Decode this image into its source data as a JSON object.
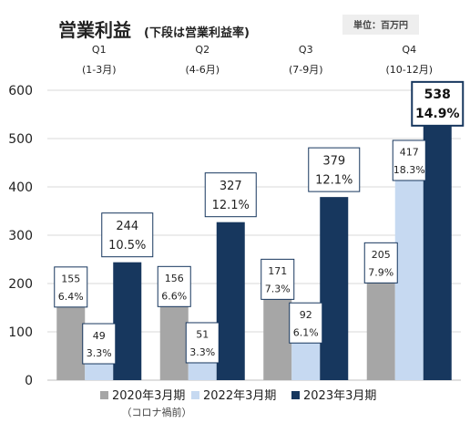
{
  "chart_data": {
    "type": "bar",
    "title": "営業利益",
    "subtitle": "(下段は営業利益率)",
    "unit_label": "単位：百万円",
    "categories": [
      "Q1",
      "Q2",
      "Q3",
      "Q4"
    ],
    "category_sublabels": [
      "(1-3月)",
      "(4-6月)",
      "(7-9月)",
      "(10-12月)"
    ],
    "series": [
      {
        "name": "2020年3月期",
        "note": "（コロナ禍前）",
        "color": "#a6a6a6",
        "values": [
          155,
          156,
          171,
          205
        ],
        "rates": [
          "6.4%",
          "6.6%",
          "7.3%",
          "7.9%"
        ]
      },
      {
        "name": "2022年3月期",
        "color": "#c6d9f1",
        "values": [
          49,
          51,
          92,
          417
        ],
        "rates": [
          "3.3%",
          "3.3%",
          "6.1%",
          "18.3%"
        ]
      },
      {
        "name": "2023年3月期",
        "color": "#17375e",
        "values": [
          244,
          327,
          379,
          538
        ],
        "rates": [
          "10.5%",
          "12.1%",
          "12.1%",
          "14.9%"
        ]
      }
    ],
    "yticks": [
      0,
      100,
      200,
      300,
      400,
      500,
      600
    ],
    "ylim": [
      0,
      600
    ],
    "grid": true,
    "legend_position": "bottom"
  }
}
